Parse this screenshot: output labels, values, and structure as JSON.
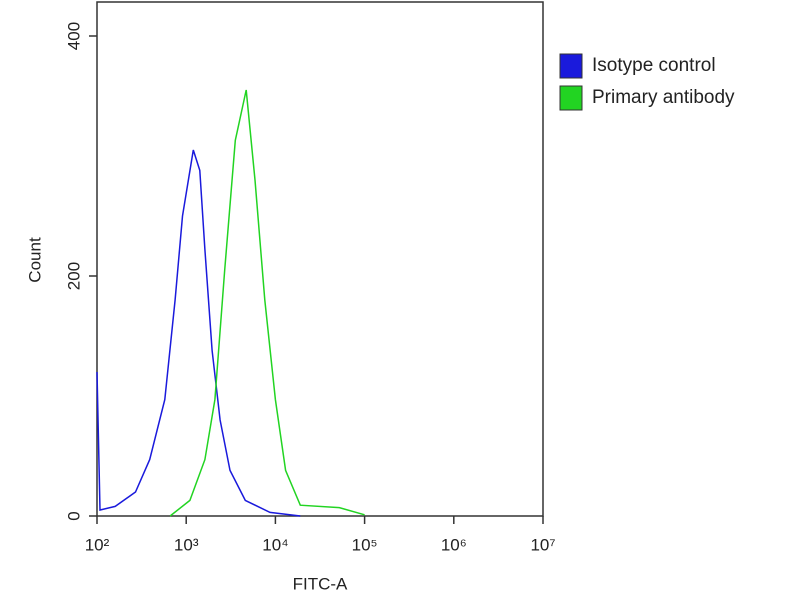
{
  "chart_data": {
    "type": "line",
    "xlabel": "FITC-A",
    "ylabel": "Count",
    "xscale": "log",
    "xlim": [
      100,
      10000000
    ],
    "xticks": [
      {
        "value": 100,
        "label": "10²"
      },
      {
        "value": 1000,
        "label": "10³"
      },
      {
        "value": 10000,
        "label": "10⁴"
      },
      {
        "value": 100000,
        "label": "10⁵"
      },
      {
        "value": 1000000,
        "label": "10⁶"
      },
      {
        "value": 10000000,
        "label": "10⁷"
      }
    ],
    "ylim": [
      0,
      430
    ],
    "yticks": [
      0,
      200,
      400
    ],
    "legend": "right",
    "series": [
      {
        "name": "Isotype control",
        "color": "#1a1adc",
        "x": [
          100,
          108,
          160,
          270,
          390,
          575,
          750,
          910,
          1200,
          1420,
          1620,
          1950,
          2400,
          3100,
          4600,
          8700,
          19000
        ],
        "values": [
          120,
          5,
          8,
          20,
          47,
          97,
          180,
          250,
          305,
          288,
          222,
          138,
          80,
          38,
          13,
          3,
          0
        ]
      },
      {
        "name": "Primary antibody",
        "color": "#22d422",
        "x": [
          660,
          1100,
          1620,
          2100,
          2700,
          3550,
          4700,
          5900,
          7600,
          10000,
          13000,
          19000,
          52000,
          100000
        ],
        "values": [
          0,
          13,
          47,
          97,
          205,
          313,
          355,
          280,
          180,
          97,
          38,
          9,
          7,
          1
        ]
      }
    ]
  }
}
